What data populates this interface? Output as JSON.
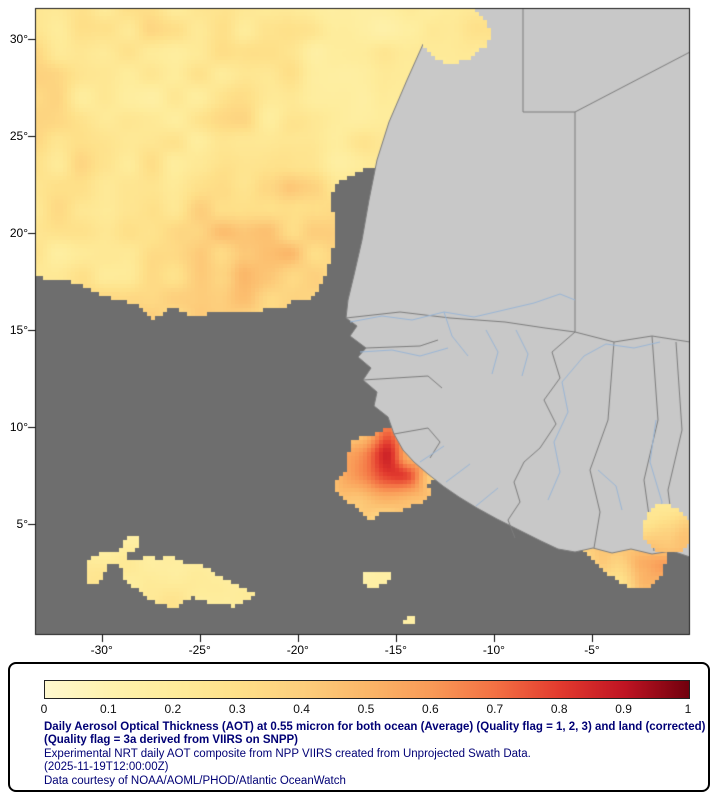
{
  "map": {
    "lat_ticks": [
      {
        "label": "30°",
        "value": 30
      },
      {
        "label": "25°",
        "value": 25
      },
      {
        "label": "20°",
        "value": 20
      },
      {
        "label": "15°",
        "value": 15
      },
      {
        "label": "10°",
        "value": 10
      },
      {
        "label": "5°",
        "value": 5
      }
    ],
    "lon_ticks": [
      {
        "label": "-30°",
        "value": -30
      },
      {
        "label": "-25°",
        "value": -25
      },
      {
        "label": "-20°",
        "value": -20
      },
      {
        "label": "-15°",
        "value": -15
      },
      {
        "label": "-10°",
        "value": -10
      },
      {
        "label": "-5°",
        "value": -5
      }
    ]
  },
  "legend": {
    "ticks": [
      "0",
      "0.1",
      "0.2",
      "0.3",
      "0.4",
      "0.5",
      "0.6",
      "0.7",
      "0.8",
      "0.9",
      "1"
    ],
    "title_bold": "Daily Aerosol Optical Thickness (AOT) at 0.55 micron for both ocean (Average) (Quality flag = 1, 2, 3) and land (corrected) (Quality flag = 3a derived from VIIRS on SNPP)",
    "line_experimental": "Experimental NRT daily AOT composite from NPP VIIRS created from Unprojected Swath Data.",
    "line_timestamp": "(2025-11-19T12:00:00Z)",
    "line_courtesy": "Data courtesy of NOAA/AOML/PHOD/Atlantic OceanWatch"
  },
  "colors": {
    "ocean_nodata": "#6e6e6e",
    "land": "#c8c8c8",
    "country_border": "#7d7d7d",
    "river": "#9ab6d6",
    "map_frame": "#1a1a1a",
    "axis_text": "#000000",
    "legend_text": "#000075",
    "colorbar_stops": [
      "#FFF8CE",
      "#FEF2AE",
      "#FEEC9B",
      "#FEE089",
      "#FDCE7C",
      "#FBB668",
      "#F99A57",
      "#F37043",
      "#E23A2E",
      "#BF1423",
      "#71000D"
    ]
  }
}
